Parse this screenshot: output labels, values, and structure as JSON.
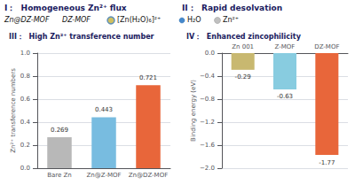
{
  "chart_data": [
    {
      "type": "bar",
      "title": "III：  High Zn²⁺ transference number",
      "annotations": [
        "I：  Homogeneous Zn²⁺ flux",
        "II：  Rapid desolvation",
        "Zn@DZ-MOF",
        "DZ-MOF",
        "[Zn(H₂O)₆]²⁺",
        "H₂O",
        "Zn²⁺"
      ],
      "ylabel": "Zn²⁺ transference numbers",
      "categories": [
        "Bare Zn",
        "Zn@Z-MOF",
        "Zn@DZ-MOF"
      ],
      "values": [
        0.269,
        0.443,
        0.721
      ],
      "value_labels": [
        "0.269",
        "0.443",
        "0.721"
      ],
      "colors": [
        "#b8b8b8",
        "#78bce0",
        "#e8663a"
      ],
      "ylim": [
        0,
        1.0
      ],
      "yticks": [
        {
          "value": 0.0,
          "label": "0.0"
        },
        0.2,
        0.4,
        0.6,
        0.8,
        {
          "value": 1.0,
          "label": "1.0"
        }
      ],
      "grid": true,
      "data_labels": true
    },
    {
      "type": "bar",
      "title": "IV：  Enhanced zincophilicity",
      "ylabel": "Binding energy (eV)",
      "categories": [
        "Zn 001",
        "Z-MOF",
        "DZ-MOF"
      ],
      "values": [
        -0.29,
        -0.63,
        -1.77
      ],
      "value_labels": [
        "-0.29",
        "-0.63",
        "-1.77"
      ],
      "colors": [
        "#c8b870",
        "#88cce0",
        "#e8663a"
      ],
      "ylim": [
        -2.0,
        0.0
      ],
      "yticks": [
        {
          "value": -2.0,
          "label": "−2.0"
        },
        {
          "value": -1.6,
          "label": "−1.6"
        },
        {
          "value": -1.2,
          "label": "−1.2"
        },
        {
          "value": -0.8,
          "label": "−0.8"
        },
        {
          "value": -0.4,
          "label": "−0.4"
        },
        {
          "value": 0.0,
          "label": "0.0"
        }
      ],
      "grid": true,
      "data_labels": true
    }
  ]
}
